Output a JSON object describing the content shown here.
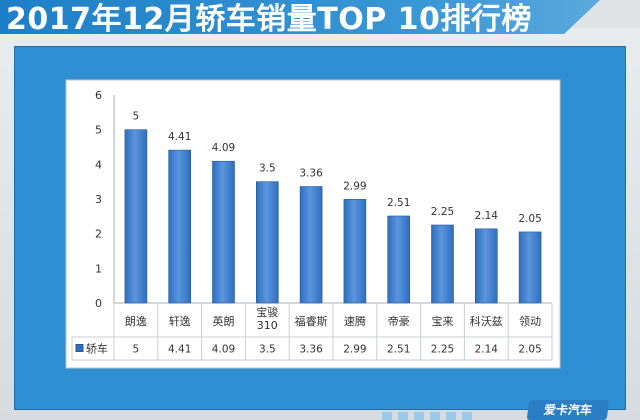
{
  "header": {
    "title": "2017年12月轿车销量TOP 10排行榜"
  },
  "chart_data": {
    "type": "bar",
    "categories": [
      "朗逸",
      "轩逸",
      "英朗",
      "宝骏310",
      "福睿斯",
      "速腾",
      "帝豪",
      "宝来",
      "科沃兹",
      "领动"
    ],
    "category_lines": [
      [
        "朗逸"
      ],
      [
        "轩逸"
      ],
      [
        "英朗"
      ],
      [
        "宝骏",
        "310"
      ],
      [
        "福睿斯"
      ],
      [
        "速腾"
      ],
      [
        "帝豪"
      ],
      [
        "宝来"
      ],
      [
        "科沃兹"
      ],
      [
        "领动"
      ]
    ],
    "series": [
      {
        "name": "轿车",
        "values": [
          5,
          4.41,
          4.09,
          3.5,
          3.36,
          2.99,
          2.51,
          2.25,
          2.14,
          2.05
        ]
      }
    ],
    "ylim": [
      0,
      6
    ],
    "yticks": [
      0,
      1,
      2,
      3,
      4,
      5,
      6
    ],
    "grid": false,
    "data_table": true,
    "legend_placement": "data-table-left",
    "title": "",
    "xlabel": "",
    "ylabel": "",
    "colors": {
      "bar": "#2f6fc0",
      "bar_light": "#5b95dd",
      "axis": "#a8b0b8",
      "text": "#333333"
    }
  },
  "watermark": {
    "text": "爱卡汽车"
  }
}
